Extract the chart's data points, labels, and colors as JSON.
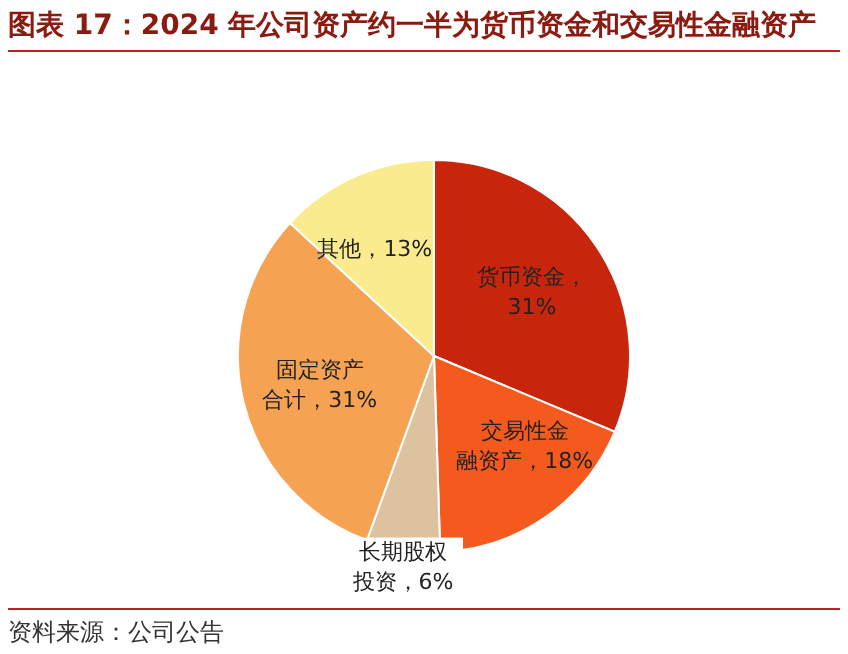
{
  "chart_data": {
    "type": "pie",
    "title": "图表 17：2024 年公司资产约一半为货币资金和交易性金融资产",
    "categories": [
      "货币资金",
      "交易性金融资产",
      "长期股权投资",
      "固定资产合计",
      "其他"
    ],
    "values": [
      31,
      18,
      6,
      31,
      13
    ],
    "value_labels": [
      "，31%",
      "，18%",
      "，6%",
      "，31%",
      "，13%"
    ],
    "colors": [
      "#c8260c",
      "#f45a1e",
      "#dcc29e",
      "#f5a352",
      "#f9eb8e"
    ],
    "annotations": [
      "资料来源：公司公告"
    ]
  }
}
